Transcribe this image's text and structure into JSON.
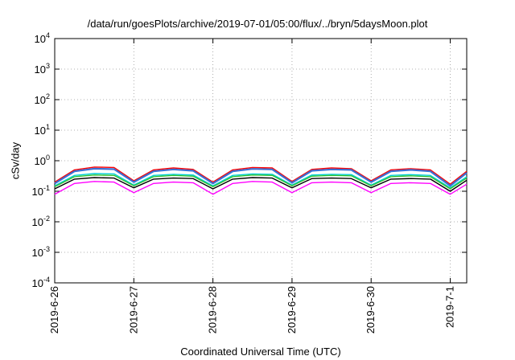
{
  "chart_data": {
    "type": "line",
    "title": "/data/run/goesPlots/archive/2019-07-01/05:00/flux/../bryn/5daysMoon.plot",
    "xlabel": "Coordinated Universal Time (UTC)",
    "ylabel": "cSv/day",
    "yscale": "log",
    "ylim": [
      0.0001,
      10000
    ],
    "xlim": [
      "2019-06-26",
      "2019-07-01 05:00"
    ],
    "grid": true,
    "yticks": [
      {
        "value": 0.0001,
        "base": "10",
        "exp": "-4"
      },
      {
        "value": 0.001,
        "base": "10",
        "exp": "-3"
      },
      {
        "value": 0.01,
        "base": "10",
        "exp": "-2"
      },
      {
        "value": 0.1,
        "base": "10",
        "exp": "-1"
      },
      {
        "value": 1,
        "base": "10",
        "exp": "0"
      },
      {
        "value": 10,
        "base": "10",
        "exp": "1"
      },
      {
        "value": 100,
        "base": "10",
        "exp": "2"
      },
      {
        "value": 1000,
        "base": "10",
        "exp": "3"
      },
      {
        "value": 10000,
        "base": "10",
        "exp": "4"
      }
    ],
    "xticks": [
      "2019-6-26",
      "2019-6-27",
      "2019-6-28",
      "2019-6-29",
      "2019-6-30",
      "2019-7-1"
    ],
    "x": [
      "06-26 00:00",
      "06-26 06:00",
      "06-26 12:00",
      "06-26 18:00",
      "06-27 00:00",
      "06-27 06:00",
      "06-27 12:00",
      "06-27 18:00",
      "06-28 00:00",
      "06-28 06:00",
      "06-28 12:00",
      "06-28 18:00",
      "06-29 00:00",
      "06-29 06:00",
      "06-29 12:00",
      "06-29 18:00",
      "06-30 00:00",
      "06-30 06:00",
      "06-30 12:00",
      "06-30 18:00",
      "07-01 00:00",
      "07-01 05:00"
    ],
    "series": [
      {
        "color": "#ff0000",
        "values": [
          0.2,
          0.5,
          0.62,
          0.6,
          0.22,
          0.5,
          0.58,
          0.52,
          0.2,
          0.5,
          0.6,
          0.58,
          0.21,
          0.52,
          0.58,
          0.55,
          0.22,
          0.5,
          0.55,
          0.5,
          0.17,
          0.45
        ]
      },
      {
        "color": "#3b6fd4",
        "values": [
          0.18,
          0.45,
          0.55,
          0.53,
          0.2,
          0.45,
          0.52,
          0.47,
          0.18,
          0.45,
          0.54,
          0.52,
          0.19,
          0.47,
          0.52,
          0.5,
          0.2,
          0.45,
          0.5,
          0.45,
          0.15,
          0.4
        ]
      },
      {
        "color": "#00cfd6",
        "values": [
          0.15,
          0.33,
          0.38,
          0.37,
          0.16,
          0.33,
          0.36,
          0.34,
          0.15,
          0.33,
          0.37,
          0.36,
          0.16,
          0.34,
          0.36,
          0.35,
          0.16,
          0.33,
          0.35,
          0.33,
          0.13,
          0.3
        ]
      },
      {
        "color": "#2ec02e",
        "values": [
          0.14,
          0.3,
          0.34,
          0.33,
          0.15,
          0.3,
          0.33,
          0.31,
          0.14,
          0.3,
          0.34,
          0.33,
          0.15,
          0.31,
          0.33,
          0.32,
          0.15,
          0.3,
          0.32,
          0.3,
          0.12,
          0.27
        ]
      },
      {
        "color": "#000000",
        "values": [
          0.12,
          0.25,
          0.28,
          0.27,
          0.13,
          0.25,
          0.27,
          0.26,
          0.12,
          0.25,
          0.28,
          0.27,
          0.13,
          0.26,
          0.27,
          0.26,
          0.13,
          0.25,
          0.26,
          0.25,
          0.1,
          0.23
        ]
      },
      {
        "color": "#ff00ff",
        "values": [
          0.08,
          0.18,
          0.21,
          0.2,
          0.09,
          0.18,
          0.2,
          0.19,
          0.08,
          0.18,
          0.21,
          0.2,
          0.09,
          0.19,
          0.2,
          0.19,
          0.09,
          0.18,
          0.19,
          0.18,
          0.08,
          0.17
        ]
      }
    ]
  }
}
